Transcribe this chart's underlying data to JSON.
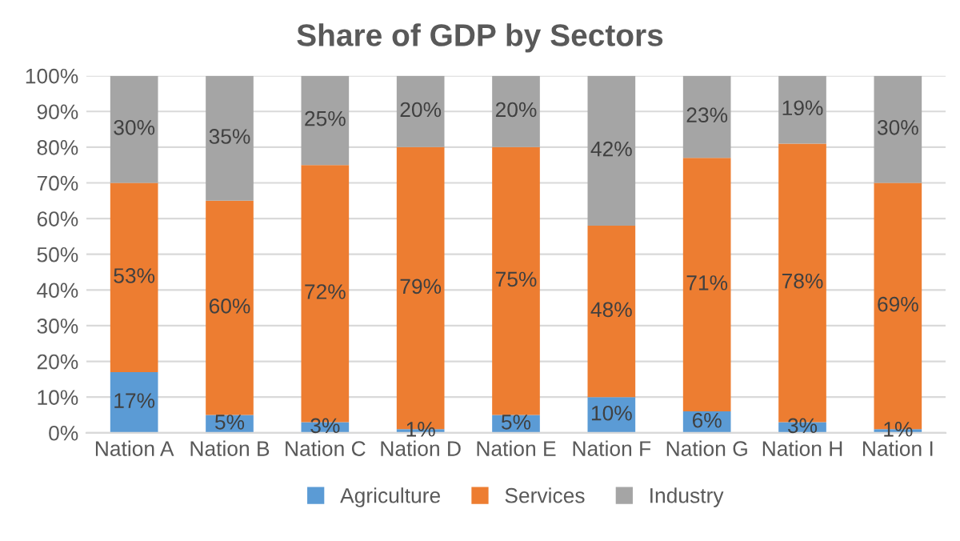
{
  "chart_data": {
    "type": "bar",
    "title": "Share of GDP by Sectors",
    "stacked": true,
    "categories": [
      "Nation A",
      "Nation B",
      "Nation C",
      "Nation D",
      "Nation E",
      "Nation F",
      "Nation G",
      "Nation H",
      "Nation I"
    ],
    "series": [
      {
        "name": "Agriculture",
        "color": "#5b9bd5",
        "values": [
          17,
          5,
          3,
          1,
          5,
          10,
          6,
          3,
          1
        ],
        "value_labels": [
          "17%",
          "5%",
          "3%",
          "1%",
          "5%",
          "10%",
          "6%",
          "3%",
          "1%"
        ]
      },
      {
        "name": "Services",
        "color": "#ed7d31",
        "values": [
          53,
          60,
          72,
          79,
          75,
          48,
          71,
          78,
          69
        ],
        "value_labels": [
          "53%",
          "60%",
          "72%",
          "79%",
          "75%",
          "48%",
          "71%",
          "78%",
          "69%"
        ]
      },
      {
        "name": "Industry",
        "color": "#a5a5a5",
        "values": [
          30,
          35,
          25,
          20,
          20,
          42,
          23,
          19,
          30
        ],
        "value_labels": [
          "30%",
          "35%",
          "25%",
          "20%",
          "20%",
          "42%",
          "23%",
          "19%",
          "30%"
        ]
      }
    ],
    "ylim": [
      0,
      100
    ],
    "yticks": [
      {
        "value": 0,
        "label": "0%"
      },
      {
        "value": 10,
        "label": "10%"
      },
      {
        "value": 20,
        "label": "20%"
      },
      {
        "value": 30,
        "label": "30%"
      },
      {
        "value": 40,
        "label": "40%"
      },
      {
        "value": 50,
        "label": "50%"
      },
      {
        "value": 60,
        "label": "60%"
      },
      {
        "value": 70,
        "label": "70%"
      },
      {
        "value": 80,
        "label": "80%"
      },
      {
        "value": 90,
        "label": "90%"
      },
      {
        "value": 100,
        "label": "100%"
      }
    ],
    "grid": "y",
    "legend": "bottom"
  }
}
